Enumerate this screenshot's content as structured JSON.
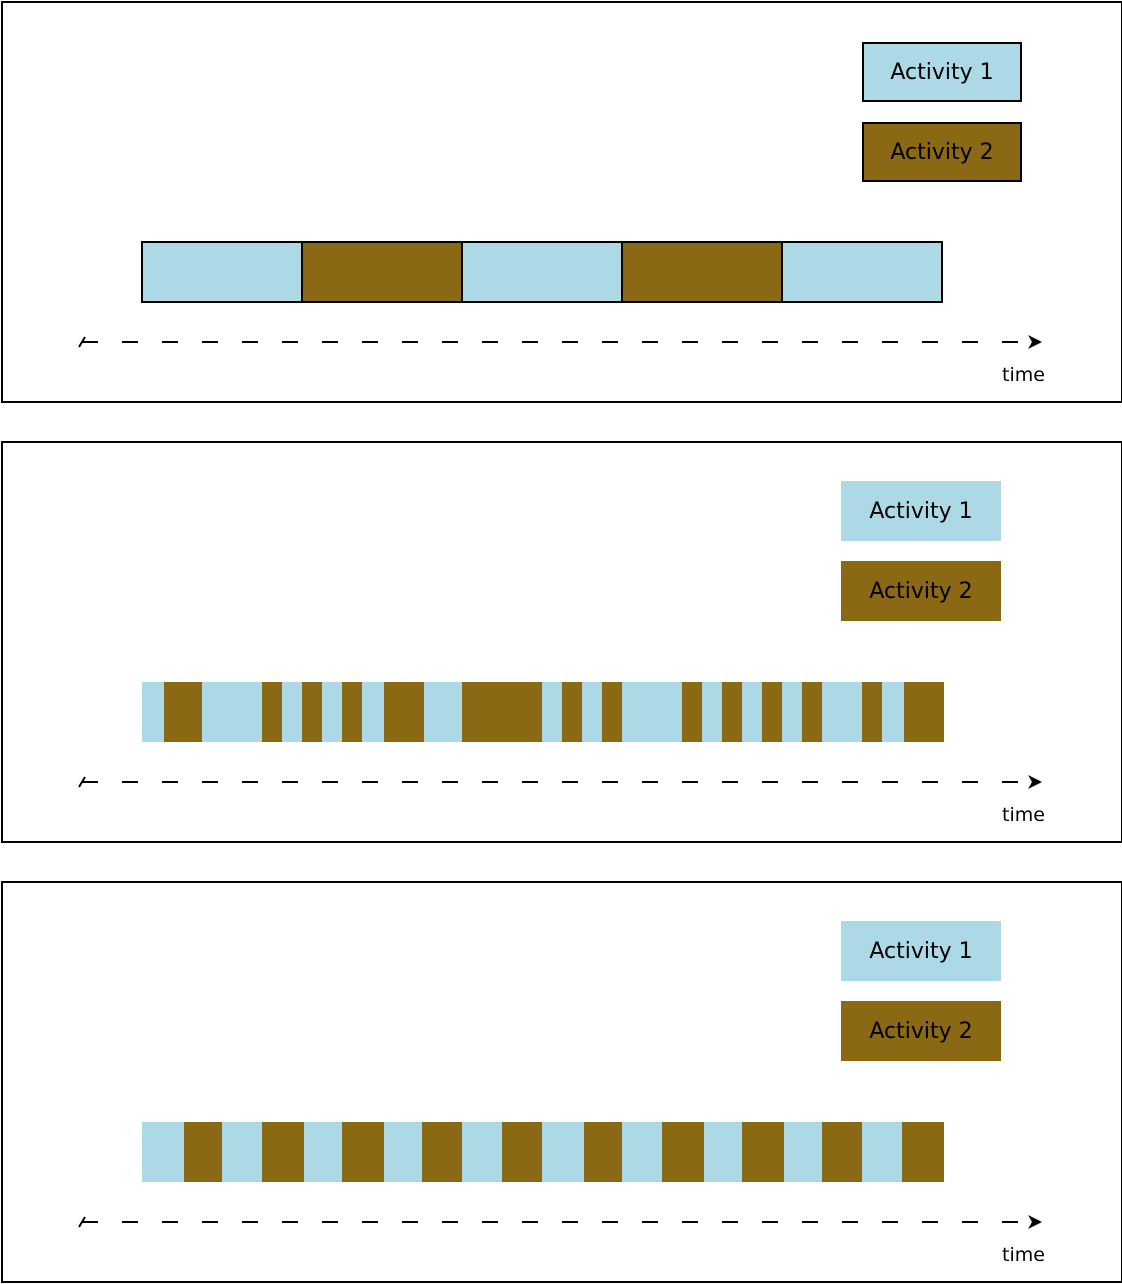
{
  "colors": {
    "activity1": "#ADD8E6",
    "activity2": "#8B6914",
    "border": "#000000"
  },
  "panels": [
    {
      "legend": [
        {
          "label": "Activity 1",
          "activity": 1
        },
        {
          "label": "Activity 2",
          "activity": 2
        }
      ],
      "legend_bordered": true,
      "axis_label": "time",
      "segments": [
        {
          "activity": 1,
          "start": 0,
          "end": 160
        },
        {
          "activity": 2,
          "start": 160,
          "end": 320
        },
        {
          "activity": 1,
          "start": 320,
          "end": 480
        },
        {
          "activity": 2,
          "start": 480,
          "end": 640
        },
        {
          "activity": 1,
          "start": 640,
          "end": 800
        }
      ],
      "segment_borders": true
    },
    {
      "legend": [
        {
          "label": "Activity 1",
          "activity": 1
        },
        {
          "label": "Activity 2",
          "activity": 2
        }
      ],
      "legend_bordered": false,
      "axis_label": "time",
      "segments": [
        {
          "activity": 1,
          "start": 0,
          "end": 22
        },
        {
          "activity": 2,
          "start": 22,
          "end": 60
        },
        {
          "activity": 1,
          "start": 60,
          "end": 120
        },
        {
          "activity": 2,
          "start": 120,
          "end": 140
        },
        {
          "activity": 1,
          "start": 140,
          "end": 160
        },
        {
          "activity": 2,
          "start": 160,
          "end": 180
        },
        {
          "activity": 1,
          "start": 180,
          "end": 200
        },
        {
          "activity": 2,
          "start": 200,
          "end": 220
        },
        {
          "activity": 1,
          "start": 220,
          "end": 242
        },
        {
          "activity": 2,
          "start": 242,
          "end": 282
        },
        {
          "activity": 1,
          "start": 282,
          "end": 320
        },
        {
          "activity": 2,
          "start": 320,
          "end": 400
        },
        {
          "activity": 1,
          "start": 400,
          "end": 420
        },
        {
          "activity": 2,
          "start": 420,
          "end": 440
        },
        {
          "activity": 1,
          "start": 440,
          "end": 460
        },
        {
          "activity": 2,
          "start": 460,
          "end": 480
        },
        {
          "activity": 1,
          "start": 480,
          "end": 540
        },
        {
          "activity": 2,
          "start": 540,
          "end": 560
        },
        {
          "activity": 1,
          "start": 560,
          "end": 580
        },
        {
          "activity": 2,
          "start": 580,
          "end": 600
        },
        {
          "activity": 1,
          "start": 600,
          "end": 620
        },
        {
          "activity": 2,
          "start": 620,
          "end": 640
        },
        {
          "activity": 1,
          "start": 640,
          "end": 660
        },
        {
          "activity": 2,
          "start": 660,
          "end": 680
        },
        {
          "activity": 1,
          "start": 680,
          "end": 720
        },
        {
          "activity": 2,
          "start": 720,
          "end": 740
        },
        {
          "activity": 1,
          "start": 740,
          "end": 762
        },
        {
          "activity": 2,
          "start": 762,
          "end": 802
        }
      ],
      "segment_borders": false
    },
    {
      "legend": [
        {
          "label": "Activity 1",
          "activity": 1
        },
        {
          "label": "Activity 2",
          "activity": 2
        }
      ],
      "legend_bordered": false,
      "axis_label": "time",
      "segments": [
        {
          "activity": 1,
          "start": 0,
          "end": 42
        },
        {
          "activity": 2,
          "start": 42,
          "end": 80
        },
        {
          "activity": 1,
          "start": 80,
          "end": 120
        },
        {
          "activity": 2,
          "start": 120,
          "end": 162
        },
        {
          "activity": 1,
          "start": 162,
          "end": 200
        },
        {
          "activity": 2,
          "start": 200,
          "end": 242
        },
        {
          "activity": 1,
          "start": 242,
          "end": 280
        },
        {
          "activity": 2,
          "start": 280,
          "end": 320
        },
        {
          "activity": 1,
          "start": 320,
          "end": 360
        },
        {
          "activity": 2,
          "start": 360,
          "end": 400
        },
        {
          "activity": 1,
          "start": 400,
          "end": 442
        },
        {
          "activity": 2,
          "start": 442,
          "end": 480
        },
        {
          "activity": 1,
          "start": 480,
          "end": 520
        },
        {
          "activity": 2,
          "start": 520,
          "end": 562
        },
        {
          "activity": 1,
          "start": 562,
          "end": 600
        },
        {
          "activity": 2,
          "start": 600,
          "end": 642
        },
        {
          "activity": 1,
          "start": 642,
          "end": 680
        },
        {
          "activity": 2,
          "start": 680,
          "end": 720
        },
        {
          "activity": 1,
          "start": 720,
          "end": 760
        },
        {
          "activity": 2,
          "start": 760,
          "end": 802
        }
      ],
      "segment_borders": false
    }
  ]
}
